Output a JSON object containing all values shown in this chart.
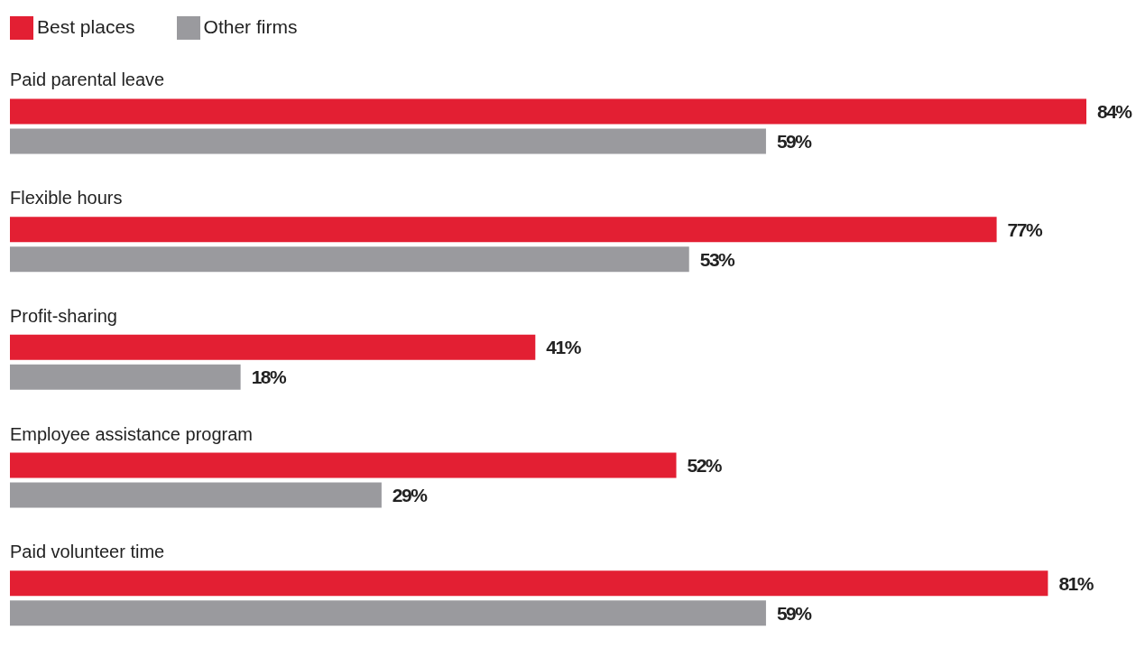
{
  "chart_data": {
    "type": "bar",
    "orientation": "horizontal",
    "legend": "top left",
    "categories": [
      "Paid parental leave",
      "Flexible hours",
      "Profit-sharing",
      "Employee assistance program",
      "Paid volunteer time"
    ],
    "series": [
      {
        "name": "Best places",
        "color": "#e31f33",
        "values": [
          84,
          77,
          41,
          52,
          81
        ],
        "value_labels": [
          "84%",
          "77%",
          "41%",
          "52%",
          "81%"
        ]
      },
      {
        "name": "Other firms",
        "color": "#9a9a9e",
        "values": [
          59,
          53,
          18,
          29,
          59
        ],
        "value_labels": [
          "59%",
          "53%",
          "18%",
          "29%",
          "59%"
        ]
      }
    ]
  }
}
